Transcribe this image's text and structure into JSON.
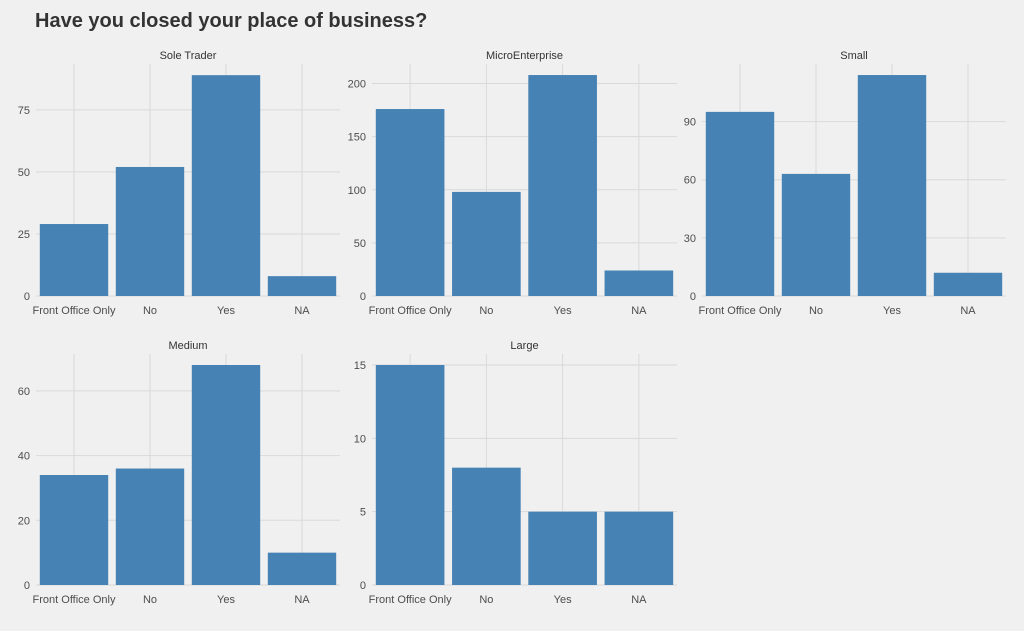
{
  "title": "Have you closed your place of business?",
  "colors": {
    "bar": "#4682b4",
    "grid": "#d9d9d9",
    "background": "#f0f0f0",
    "text": "#4d4d4d"
  },
  "chart_data": [
    {
      "type": "bar",
      "title": "Sole Trader",
      "categories": [
        "Front Office Only",
        "No",
        "Yes",
        "NA"
      ],
      "values": [
        29,
        52,
        89,
        8
      ],
      "yticks": [
        0,
        25,
        50,
        75
      ],
      "ylim": [
        0,
        93.5
      ],
      "grid": true
    },
    {
      "type": "bar",
      "title": "MicroEnterprise",
      "categories": [
        "Front Office Only",
        "No",
        "Yes",
        "NA"
      ],
      "values": [
        176,
        98,
        208,
        24
      ],
      "yticks": [
        0,
        50,
        100,
        150,
        200
      ],
      "ylim": [
        0,
        218.4
      ],
      "grid": true
    },
    {
      "type": "bar",
      "title": "Small",
      "categories": [
        "Front Office Only",
        "No",
        "Yes",
        "NA"
      ],
      "values": [
        95,
        63,
        114,
        12
      ],
      "yticks": [
        0,
        30,
        60,
        90
      ],
      "ylim": [
        0,
        119.7
      ],
      "grid": true
    },
    {
      "type": "bar",
      "title": "Medium",
      "categories": [
        "Front Office Only",
        "No",
        "Yes",
        "NA"
      ],
      "values": [
        34,
        36,
        68,
        10
      ],
      "yticks": [
        0,
        20,
        40,
        60
      ],
      "ylim": [
        0,
        71.4
      ],
      "grid": true
    },
    {
      "type": "bar",
      "title": "Large",
      "categories": [
        "Front Office Only",
        "No",
        "Yes",
        "NA"
      ],
      "values": [
        15,
        8,
        5,
        5
      ],
      "yticks": [
        0,
        5,
        10,
        15
      ],
      "ylim": [
        0,
        15.75
      ],
      "grid": true
    }
  ]
}
